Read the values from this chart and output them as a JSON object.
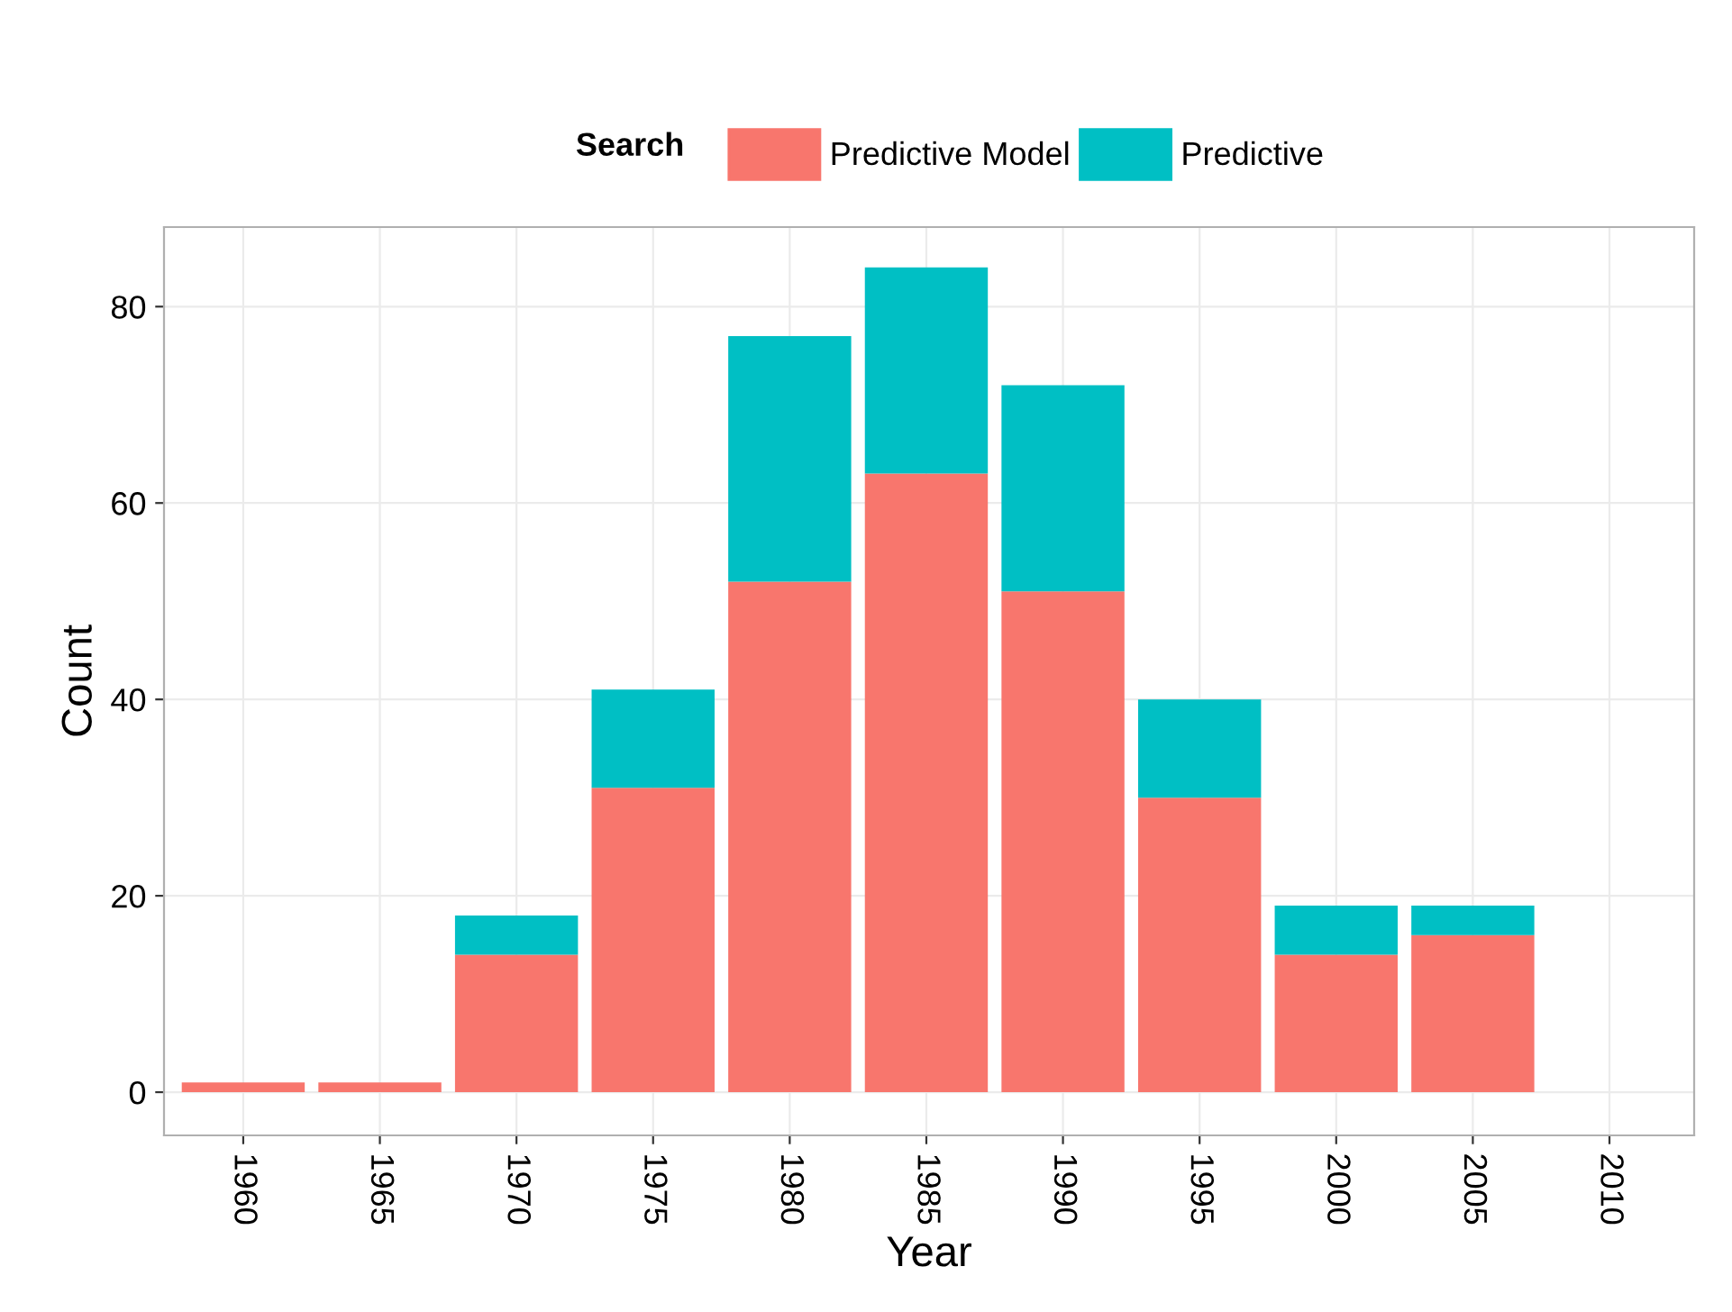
{
  "chart_data": {
    "type": "bar",
    "stacked": true,
    "xlabel": "Year",
    "ylabel": "Count",
    "legend_title": "Search",
    "legend": "top",
    "x": [
      1960,
      1965,
      1970,
      1975,
      1980,
      1985,
      1990,
      1995,
      2000,
      2005
    ],
    "series": [
      {
        "name": "Predictive Model",
        "color": "#f8766d",
        "values": [
          1,
          1,
          14,
          31,
          52,
          63,
          51,
          30,
          14,
          16
        ]
      },
      {
        "name": "Predictive",
        "color": "#00bfc4",
        "values": [
          0,
          0,
          4,
          10,
          25,
          21,
          21,
          10,
          5,
          3
        ]
      }
    ],
    "xlim": [
      1957.1,
      2013.1
    ],
    "xticks": [
      1960,
      1965,
      1970,
      1975,
      1980,
      1985,
      1990,
      1995,
      2000,
      2005,
      2010
    ],
    "ylim": [
      -4.4,
      88.1
    ],
    "yticks": [
      0,
      20,
      40,
      60,
      80
    ],
    "grid": true
  }
}
